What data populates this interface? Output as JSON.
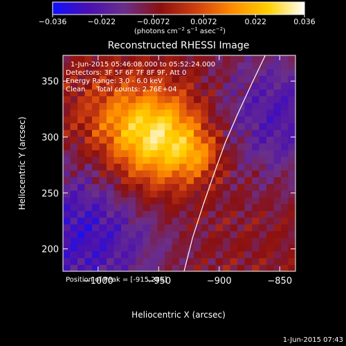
{
  "chart_data": {
    "type": "heatmap",
    "title": "Reconstructed RHESSI Image",
    "colorbar": {
      "colors": [
        "#1010ff",
        "#4a10b0",
        "#6a2f8a",
        "#8a1010",
        "#d04010",
        "#ff8c00",
        "#ffd000",
        "#ffffff"
      ],
      "min": -0.036,
      "max": 0.036,
      "tick_values": [
        -0.036,
        -0.022,
        -0.0072,
        0.0072,
        0.022,
        0.036
      ],
      "tick_labels": [
        "−0.036",
        "−0.022",
        "−0.0072",
        "0.0072",
        "0.022",
        "0.036"
      ],
      "units_pre": "(photons cm",
      "units_sup1": "−2",
      "units_mid": " s",
      "units_sup2": "−1",
      "units_mid2": " asec",
      "units_sup3": "−2",
      "units_post": ")"
    },
    "xaxis": {
      "label": "Heliocentric X (arcsec)",
      "range": [
        -1029,
        -837
      ],
      "ticks": [
        -1000,
        -950,
        -900,
        -850
      ],
      "tick_labels": [
        "−1000",
        "−950",
        "−900",
        "−850"
      ]
    },
    "yaxis": {
      "label": "Heliocentric Y (arcsec)",
      "range": [
        180,
        373
      ],
      "ticks": [
        200,
        250,
        300,
        350
      ],
      "tick_labels": [
        "200",
        "250",
        "300",
        "350"
      ]
    },
    "annotations": {
      "time_range": "1-Jun-2015 05:46:08.000 to 05:52:24.000",
      "detectors": "Detectors: 3F 5F 6F 7F 8F 9F, Att 0",
      "energy": "Energy Range: 3.0 - 6.0 keV",
      "clean": "Clean     Total counts: 2.76E+04",
      "peak": "Position of Peak = [-915,286]"
    },
    "peak": [
      -915,
      286
    ],
    "limb_curve": {
      "x": [
        -929,
        -922,
        -913,
        -904,
        -895,
        -885,
        -873,
        -862
      ],
      "y": [
        180,
        210,
        240,
        268,
        295,
        320,
        348,
        373
      ]
    },
    "sources": [
      {
        "x": -948,
        "y": 300,
        "sigma": 28,
        "amp": 0.033
      },
      {
        "x": -918,
        "y": 283,
        "sigma": 14,
        "amp": 0.012
      },
      {
        "x": -985,
        "y": 318,
        "sigma": 26,
        "amp": 0.012
      },
      {
        "x": -965,
        "y": 255,
        "sigma": 26,
        "amp": 0.006
      }
    ],
    "background": {
      "x": -1010,
      "y": 215,
      "sigma": 45,
      "amp": -0.022
    },
    "background2": {
      "x": -850,
      "y": 320,
      "sigma": 40,
      "amp": -0.018
    },
    "grid_on": false
  },
  "footer_timestamp": "1-Jun-2015 07:43"
}
